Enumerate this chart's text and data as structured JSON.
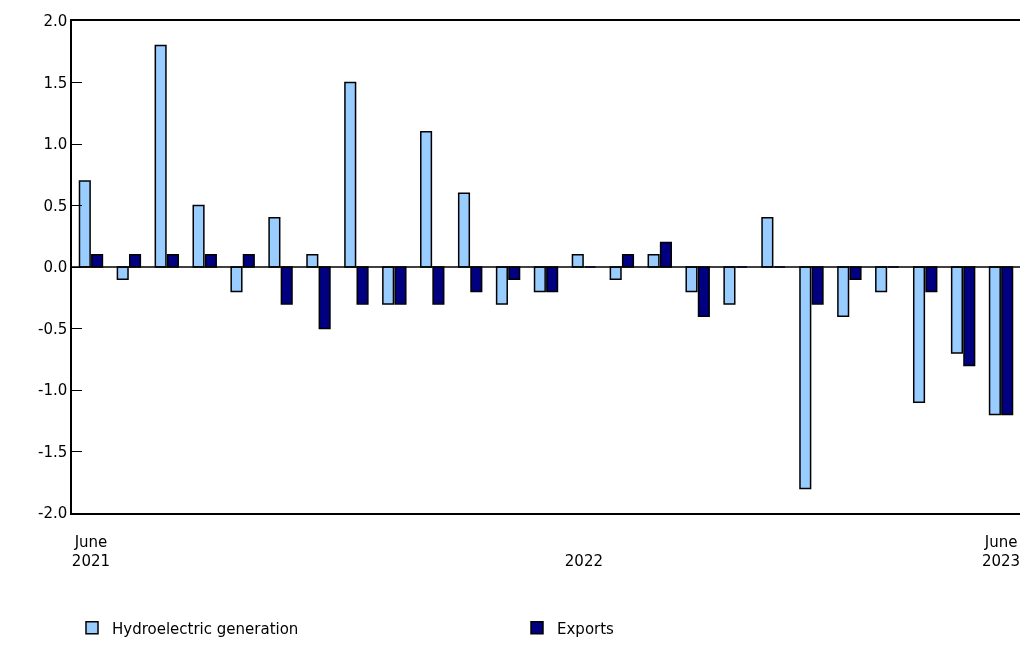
{
  "chart_data": {
    "type": "bar",
    "categories": [
      "June\n2021",
      null,
      null,
      null,
      null,
      null,
      null,
      null,
      null,
      null,
      null,
      null,
      null,
      "\n2022",
      null,
      null,
      null,
      null,
      null,
      null,
      null,
      null,
      null,
      null,
      "June\n2023"
    ],
    "series": [
      {
        "name": "Hydroelectric generation",
        "color": "#99ccff",
        "values": [
          0.7,
          -0.1,
          1.8,
          0.5,
          -0.2,
          0.4,
          0.1,
          1.5,
          -0.3,
          1.1,
          0.6,
          -0.3,
          -0.2,
          0.1,
          -0.1,
          0.1,
          -0.2,
          -0.3,
          0.4,
          -1.8,
          -0.4,
          -0.2,
          -1.1,
          -0.7,
          -1.2
        ]
      },
      {
        "name": "Exports",
        "color": "#000080",
        "values": [
          0.1,
          0.1,
          0.1,
          0.1,
          0.1,
          -0.3,
          -0.5,
          -0.3,
          -0.3,
          -0.3,
          -0.2,
          -0.1,
          -0.2,
          0.0,
          0.1,
          0.2,
          -0.4,
          0.0,
          0.0,
          -0.3,
          -0.1,
          0.0,
          -0.2,
          -0.8,
          -1.2
        ]
      }
    ],
    "ylim": [
      -2.0,
      2.0
    ],
    "yticks": [
      {
        "value": -2.0,
        "label": "-2.0"
      },
      {
        "value": -1.5,
        "label": "-1.5"
      },
      {
        "value": -1.0,
        "label": "-1.0"
      },
      {
        "value": -0.5,
        "label": "-0.5"
      },
      {
        "value": 0.0,
        "label": "0.0"
      },
      {
        "value": 0.5,
        "label": "0.5"
      },
      {
        "value": 1.0,
        "label": "1.0"
      },
      {
        "value": 1.5,
        "label": "1.5"
      },
      {
        "value": 2.0,
        "label": "2.0"
      }
    ],
    "ref_lines": [
      {
        "axis": "y",
        "value": 0.0,
        "color": "#000000"
      }
    ],
    "legend": "bottom"
  }
}
